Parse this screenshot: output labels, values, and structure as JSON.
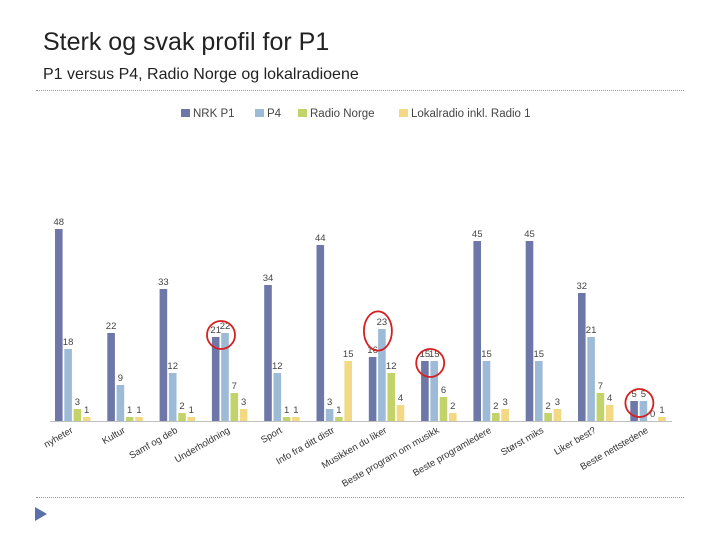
{
  "slide": {
    "title": "Sterk og svak profil for P1",
    "subtitle": "P1 versus P4, Radio Norge og lokalradioene"
  },
  "colors": {
    "nrk_p1": "#6e78a8",
    "p4": "#9dbbd6",
    "radio_norge": "#c3d36a",
    "lokalradio": "#f3d983",
    "highlight_circle": "#d42020",
    "axis": "#bfbfbf",
    "arrow": "#5b6fa8"
  },
  "chart_data": {
    "type": "bar",
    "categories": [
      "nyheter",
      "Kultur",
      "Samf og deb",
      "Underholdning",
      "Sport",
      "Info fra ditt distr",
      "Musikken du liker",
      "Beste program om musikk",
      "Beste programledere",
      "Størst miks",
      "Liker best?",
      "Beste nettstedene"
    ],
    "series": [
      {
        "name": "NRK P1",
        "values": [
          48,
          22,
          33,
          21,
          34,
          44,
          16,
          15,
          45,
          45,
          32,
          5
        ]
      },
      {
        "name": "P4",
        "values": [
          18,
          9,
          12,
          22,
          12,
          3,
          23,
          15,
          15,
          15,
          21,
          5
        ]
      },
      {
        "name": "Radio Norge",
        "values": [
          3,
          1,
          2,
          7,
          1,
          1,
          12,
          6,
          2,
          2,
          7,
          0
        ]
      },
      {
        "name": "Lokalradio inkl. Radio 1",
        "values": [
          1,
          1,
          1,
          3,
          1,
          15,
          4,
          2,
          3,
          3,
          4,
          1
        ]
      }
    ],
    "ylim": [
      0,
      50
    ],
    "legend": "top",
    "grid": false,
    "highlighted_categories": [
      "Underholdning",
      "Musikken du liker",
      "Beste program om musikk",
      "Beste nettstedene"
    ]
  }
}
